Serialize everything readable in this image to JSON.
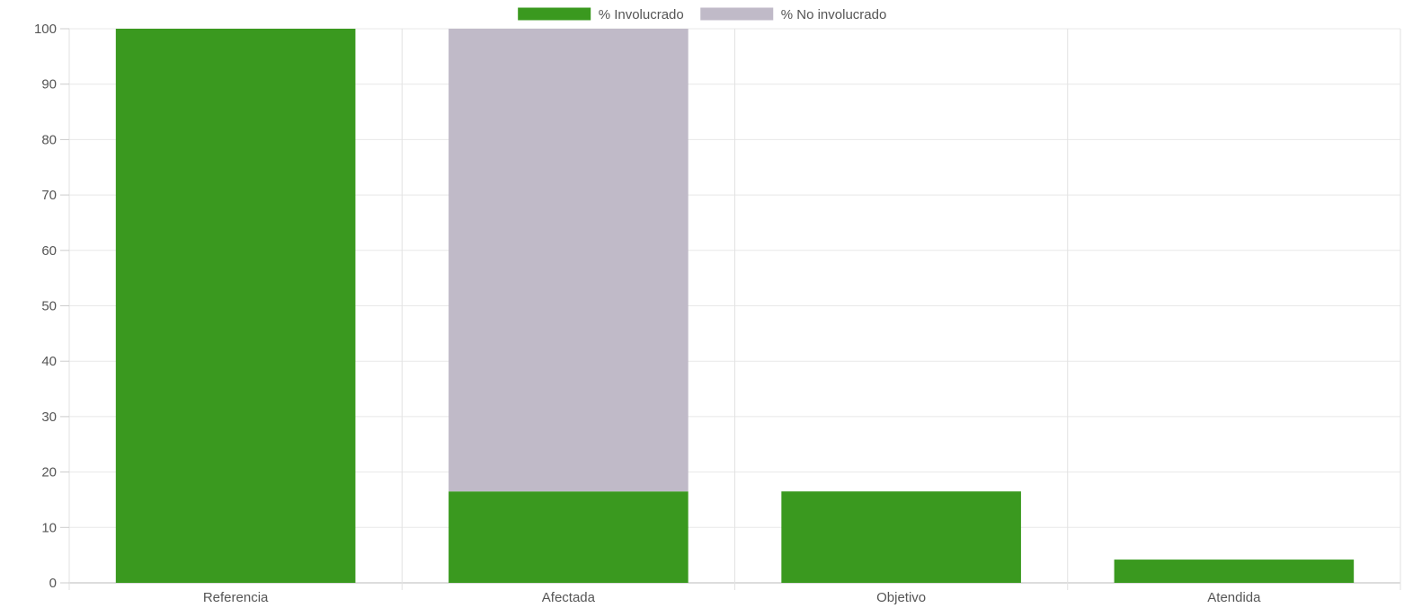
{
  "chart_data": {
    "type": "bar",
    "stacked": true,
    "categories": [
      "Referencia",
      "Afectada",
      "Objetivo",
      "Atendida"
    ],
    "series": [
      {
        "name": "% Involucrado",
        "values": [
          100,
          16.5,
          16.5,
          4.2
        ],
        "color": "#3a991f"
      },
      {
        "name": "% No involucrado",
        "values": [
          0,
          83.5,
          0,
          0
        ],
        "color": "#c0bac8"
      }
    ],
    "ylim": [
      0,
      100
    ],
    "yticks": [
      0,
      10,
      20,
      30,
      40,
      50,
      60,
      70,
      80,
      90,
      100
    ],
    "grid": true,
    "legend_position": "top-center",
    "xlabel": "",
    "ylabel": "",
    "title": ""
  }
}
